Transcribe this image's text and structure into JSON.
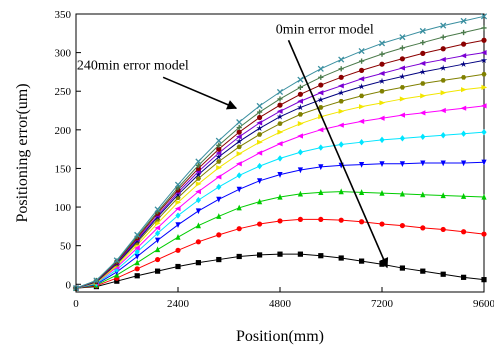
{
  "chart_data": {
    "type": "line",
    "xlabel": "Position(mm)",
    "ylabel": "Positioning error(um)",
    "xlim": [
      0,
      9600
    ],
    "ylim": [
      -10,
      350
    ],
    "xticks": [
      0,
      2400,
      4800,
      7200,
      9600
    ],
    "yticks": [
      0,
      50,
      100,
      150,
      200,
      250,
      300,
      350
    ],
    "grid": false,
    "legend": "none",
    "x": [
      0,
      480,
      960,
      1440,
      1920,
      2400,
      2880,
      3360,
      3840,
      4320,
      4800,
      5280,
      5760,
      6240,
      6720,
      7200,
      7680,
      8160,
      8640,
      9120,
      9600
    ],
    "series": [
      {
        "color": "#000000",
        "marker": "square",
        "values": [
          -5,
          -3,
          4,
          11,
          17,
          23,
          28,
          32,
          36,
          38,
          39,
          39,
          37,
          34,
          30,
          26,
          21,
          17,
          13,
          9,
          6
        ]
      },
      {
        "color": "#ff0000",
        "marker": "circle",
        "values": [
          -5,
          -2,
          8,
          20,
          32,
          44,
          55,
          64,
          72,
          78,
          82,
          84,
          84,
          83,
          81,
          78,
          76,
          73,
          71,
          68,
          65
        ]
      },
      {
        "color": "#00cc00",
        "marker": "triangle-up",
        "values": [
          -5,
          -1,
          12,
          28,
          45,
          61,
          76,
          88,
          99,
          107,
          113,
          117,
          119,
          120,
          119,
          118,
          117,
          116,
          115,
          114,
          113
        ]
      },
      {
        "color": "#0000ff",
        "marker": "triangle-down",
        "values": [
          -5,
          0,
          16,
          36,
          57,
          77,
          95,
          110,
          123,
          134,
          142,
          148,
          152,
          154,
          155,
          156,
          156,
          157,
          157,
          157,
          158
        ]
      },
      {
        "color": "#00e5ff",
        "marker": "diamond",
        "values": [
          -5,
          1,
          19,
          42,
          66,
          89,
          109,
          126,
          141,
          153,
          163,
          171,
          177,
          181,
          184,
          187,
          189,
          191,
          193,
          195,
          197
        ]
      },
      {
        "color": "#ff00ff",
        "marker": "triangle-left",
        "values": [
          -5,
          2,
          22,
          47,
          73,
          98,
          120,
          139,
          156,
          170,
          182,
          192,
          200,
          206,
          211,
          215,
          219,
          222,
          225,
          228,
          231
        ]
      },
      {
        "color": "#f2e600",
        "marker": "triangle-right",
        "values": [
          -5,
          2,
          24,
          51,
          79,
          106,
          130,
          151,
          169,
          184,
          197,
          208,
          217,
          224,
          230,
          235,
          240,
          244,
          248,
          252,
          255
        ]
      },
      {
        "color": "#808000",
        "marker": "hexagon",
        "values": [
          -5,
          3,
          26,
          54,
          84,
          112,
          137,
          159,
          178,
          194,
          208,
          220,
          229,
          237,
          244,
          250,
          255,
          260,
          264,
          268,
          272
        ]
      },
      {
        "color": "#000080",
        "marker": "star",
        "values": [
          -5,
          3,
          27,
          56,
          87,
          116,
          142,
          165,
          185,
          202,
          217,
          229,
          239,
          248,
          256,
          263,
          269,
          275,
          280,
          285,
          290
        ]
      },
      {
        "color": "#7b00d4",
        "marker": "triangle-left",
        "values": [
          -5,
          4,
          28,
          58,
          89,
          119,
          146,
          170,
          191,
          209,
          224,
          237,
          248,
          257,
          266,
          273,
          280,
          286,
          291,
          296,
          300
        ]
      },
      {
        "color": "#8b0000",
        "marker": "circle",
        "values": [
          -5,
          4,
          29,
          60,
          92,
          122,
          150,
          175,
          197,
          216,
          232,
          246,
          258,
          268,
          277,
          285,
          292,
          299,
          305,
          311,
          316
        ]
      },
      {
        "color": "#4a7a4a",
        "marker": "plus",
        "values": [
          -5,
          5,
          30,
          62,
          94,
          125,
          154,
          180,
          203,
          223,
          240,
          255,
          268,
          279,
          289,
          298,
          306,
          313,
          320,
          326,
          332
        ]
      },
      {
        "color": "#3a8fa0",
        "marker": "x",
        "values": [
          -5,
          5,
          31,
          64,
          97,
          129,
          159,
          186,
          210,
          231,
          249,
          265,
          279,
          291,
          302,
          312,
          320,
          328,
          335,
          341,
          347
        ]
      }
    ],
    "annotations": [
      {
        "text": "0min error model",
        "data_x": 4700,
        "data_y": 325
      },
      {
        "text": "240min error model",
        "data_x": 20,
        "data_y": 278
      }
    ]
  }
}
